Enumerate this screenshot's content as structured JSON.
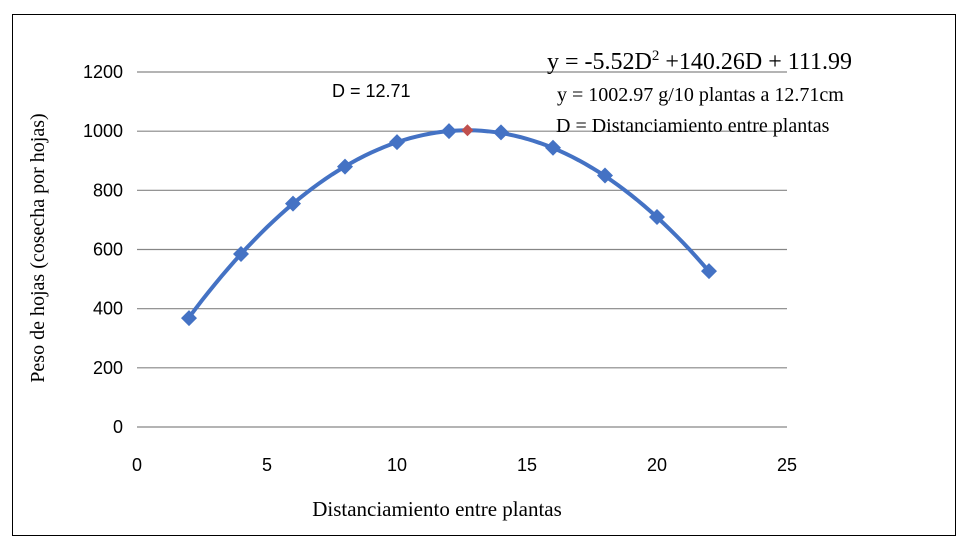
{
  "chart_data": {
    "type": "scatter",
    "title": "",
    "xlabel": "Distanciamiento entre plantas",
    "ylabel": "Peso de hojas (cosecha por hojas)",
    "xlim": [
      0,
      25
    ],
    "ylim": [
      0,
      1200
    ],
    "xticks": [
      0,
      5,
      10,
      15,
      20,
      25
    ],
    "yticks": [
      0,
      200,
      400,
      600,
      800,
      1000,
      1200
    ],
    "grid": "horizontal",
    "series": [
      {
        "x": [
          2,
          4,
          6,
          8,
          10,
          12,
          14,
          16,
          18,
          20,
          22
        ],
        "y": [
          368,
          585,
          755,
          880,
          963,
          1000,
          996,
          944,
          850,
          710,
          527
        ],
        "color": "#4472C4",
        "marker": "diamond"
      }
    ],
    "trendline": {
      "type": "polynomial-2",
      "coefficients": [
        -5.52,
        140.26,
        111.99
      ],
      "color": "#4472C4"
    },
    "optimum_point": {
      "x": 12.71,
      "y": 1002.97,
      "color": "#C0504D"
    },
    "annotations": {
      "optimum_label": "D = 12.71",
      "equation_prefix": "y = -5.52D",
      "equation_exponent": "2",
      "equation_suffix": " +140.26D + 111.99",
      "yield_line": "y = 1002.97 g/10 plantas a 12.71cm",
      "definition_line": "D = Distanciamiento entre plantas"
    }
  }
}
